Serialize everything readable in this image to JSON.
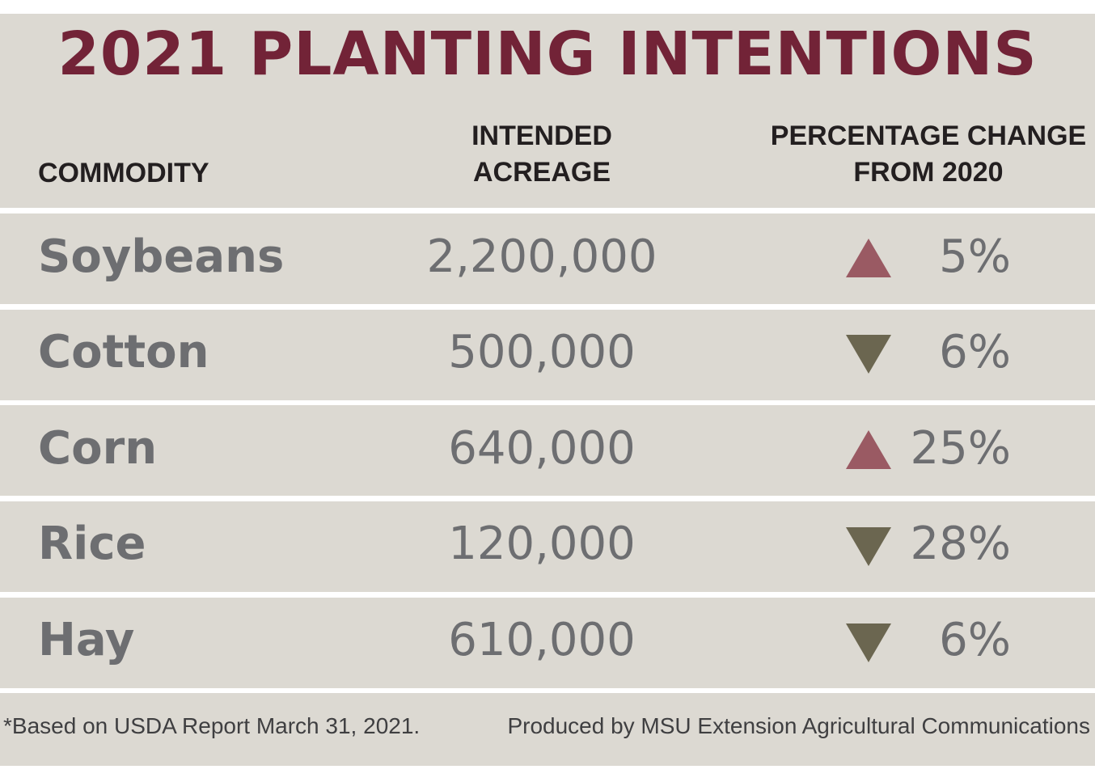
{
  "title": "2021 PLANTING INTENTIONS",
  "columns": {
    "commodity": "COMMODITY",
    "acreage_line1": "INTENDED",
    "acreage_line2": "ACREAGE",
    "change_line1": "PERCENTAGE CHANGE",
    "change_line2": "FROM 2020"
  },
  "rows": [
    {
      "commodity": "Soybeans",
      "acreage": "2,200,000",
      "direction": "up",
      "change": "5%"
    },
    {
      "commodity": "Cotton",
      "acreage": "500,000",
      "direction": "down",
      "change": "6%"
    },
    {
      "commodity": "Corn",
      "acreage": "640,000",
      "direction": "up",
      "change": "25%"
    },
    {
      "commodity": "Rice",
      "acreage": "120,000",
      "direction": "down",
      "change": "28%"
    },
    {
      "commodity": "Hay",
      "acreage": "610,000",
      "direction": "down",
      "change": "6%"
    }
  ],
  "footer": {
    "source_note": "*Based on USDA Report March 31, 2021.",
    "credit": "Produced by MSU Extension Agricultural Communications"
  },
  "colors": {
    "title": "#722337",
    "up_arrow": "#9a5a63",
    "down_arrow": "#6b6650",
    "band": "#dcd9d2"
  },
  "icons": {
    "up": "triangle-up-icon",
    "down": "triangle-down-icon"
  }
}
